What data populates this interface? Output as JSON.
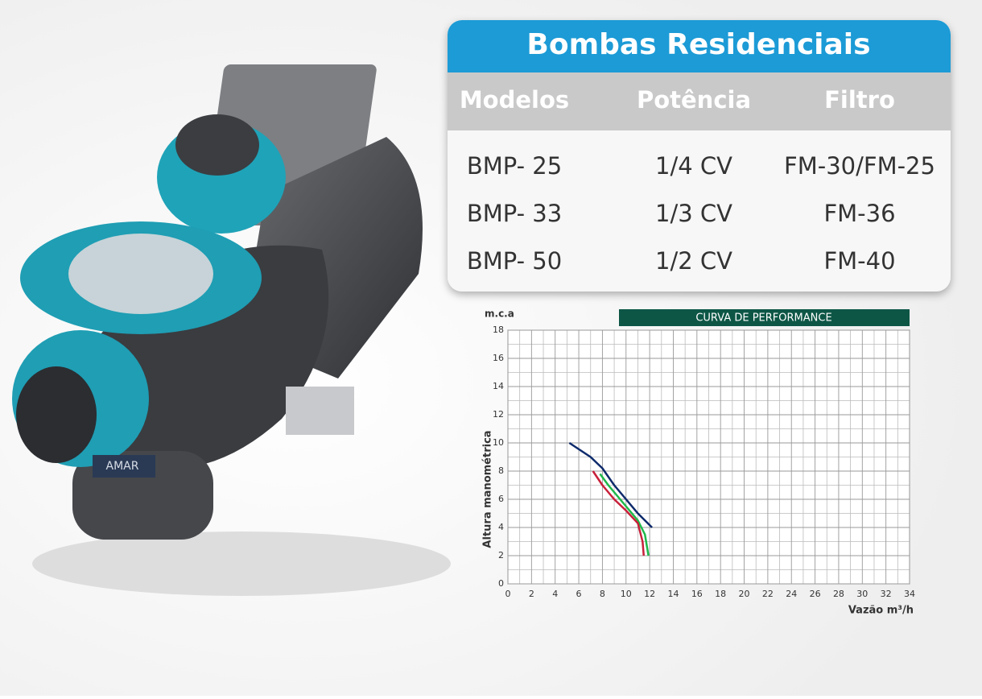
{
  "brand_label": "AMAR",
  "table": {
    "title": "Bombas Residenciais",
    "headers": [
      "Modelos",
      "Potência",
      "Filtro"
    ],
    "rows": [
      [
        "BMP- 25",
        "1/4 CV",
        "FM-30/FM-25"
      ],
      [
        "BMP- 33",
        "1/3 CV",
        "FM-36"
      ],
      [
        "BMP- 50",
        "1/2 CV",
        "FM-40"
      ]
    ]
  },
  "chart_data": {
    "type": "line",
    "title": "CURVA DE PERFORMANCE",
    "unit_label": "m.c.a",
    "y_label": "Altura manométrica",
    "x_label": "Vazão m³/h",
    "xlim": [
      0,
      34
    ],
    "ylim": [
      0,
      18
    ],
    "xticks": [
      0,
      2,
      4,
      6,
      8,
      10,
      12,
      14,
      16,
      18,
      20,
      22,
      24,
      26,
      28,
      30,
      32,
      34
    ],
    "yticks": [
      0,
      2,
      4,
      6,
      8,
      10,
      12,
      14,
      16,
      18
    ],
    "grid": true,
    "series": [
      {
        "color": "#0d2a6b",
        "x": [
          5.2,
          7,
          8,
          9,
          10,
          11,
          12.2
        ],
        "values": [
          10,
          9,
          8.2,
          7,
          6,
          5,
          4
        ]
      },
      {
        "color": "#1fb84a",
        "x": [
          7.8,
          8.5,
          9,
          10,
          11,
          11.6,
          11.9
        ],
        "values": [
          7.8,
          7,
          6.5,
          5.5,
          4.5,
          3.5,
          2
        ]
      },
      {
        "color": "#c8203a",
        "x": [
          7.2,
          8,
          9,
          10,
          11,
          11.4,
          11.5
        ],
        "values": [
          8,
          7,
          6,
          5.2,
          4.3,
          3,
          2
        ]
      }
    ]
  }
}
